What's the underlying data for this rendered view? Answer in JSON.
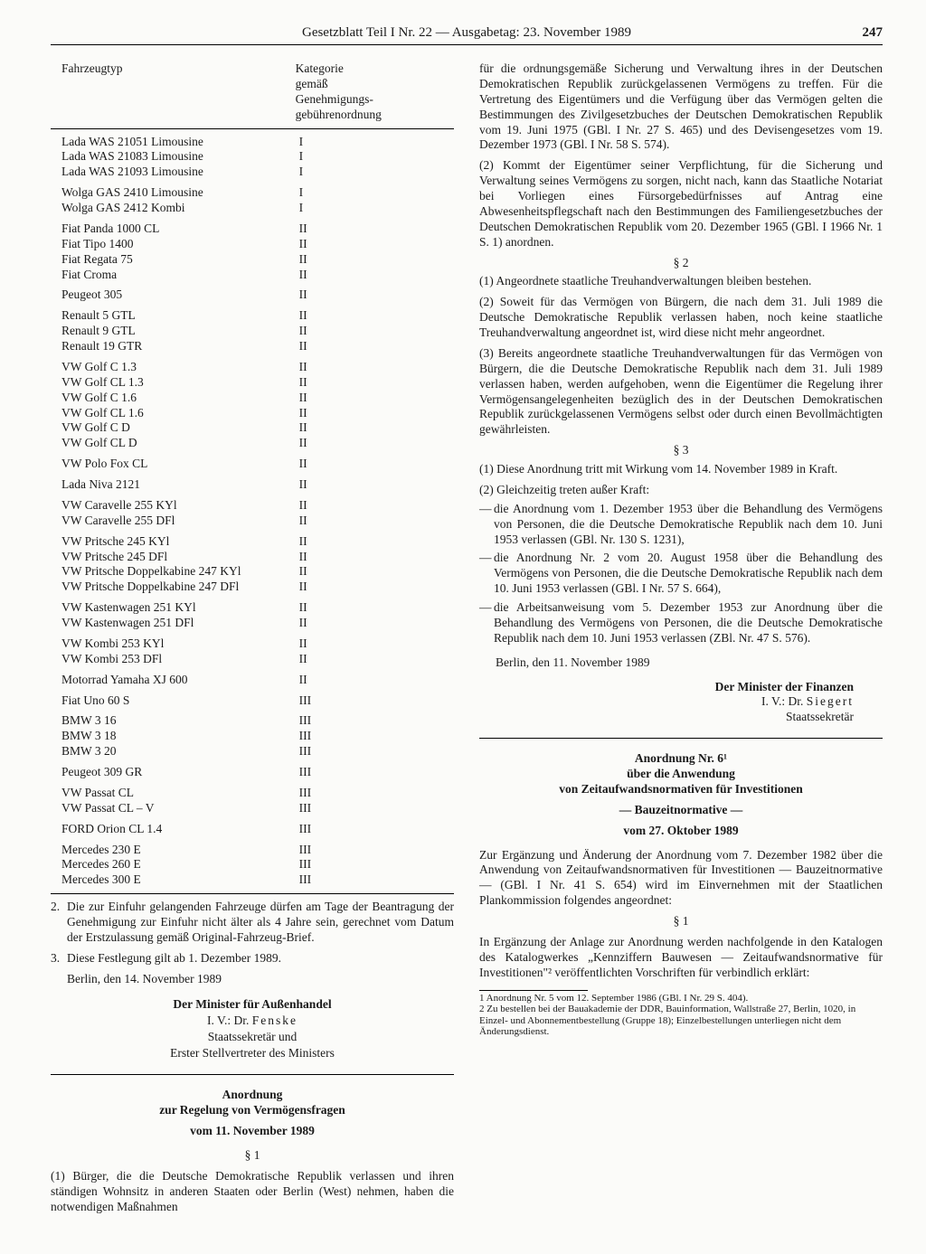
{
  "header": {
    "title": "Gesetzblatt Teil I Nr. 22 — Ausgabetag: 23. November 1989",
    "page": "247"
  },
  "table": {
    "head_col1": "Fahrzeugtyp",
    "head_col2": "Kategorie\ngemäß\nGenehmigungs-\ngebührenordnung",
    "groups": [
      [
        [
          "Lada WAS 21051 Limousine",
          "I"
        ],
        [
          "Lada WAS 21083 Limousine",
          "I"
        ],
        [
          "Lada WAS 21093 Limousine",
          "I"
        ]
      ],
      [
        [
          "Wolga GAS 2410 Limousine",
          "I"
        ],
        [
          "Wolga GAS 2412 Kombi",
          "I"
        ]
      ],
      [
        [
          "Fiat Panda 1000 CL",
          "II"
        ],
        [
          "Fiat Tipo 1400",
          "II"
        ],
        [
          "Fiat Regata 75",
          "II"
        ],
        [
          "Fiat Croma",
          "II"
        ]
      ],
      [
        [
          "Peugeot 305",
          "II"
        ]
      ],
      [
        [
          "Renault 5 GTL",
          "II"
        ],
        [
          "Renault 9 GTL",
          "II"
        ],
        [
          "Renault 19 GTR",
          "II"
        ]
      ],
      [
        [
          "VW Golf C 1.3",
          "II"
        ],
        [
          "VW Golf CL 1.3",
          "II"
        ],
        [
          "VW Golf C 1.6",
          "II"
        ],
        [
          "VW Golf CL 1.6",
          "II"
        ],
        [
          "VW Golf C D",
          "II"
        ],
        [
          "VW Golf CL D",
          "II"
        ]
      ],
      [
        [
          "VW Polo Fox CL",
          "II"
        ]
      ],
      [
        [
          "Lada Niva 2121",
          "II"
        ]
      ],
      [
        [
          "VW Caravelle 255 KYl",
          "II"
        ],
        [
          "VW Caravelle 255 DFl",
          "II"
        ]
      ],
      [
        [
          "VW Pritsche 245 KYl",
          "II"
        ],
        [
          "VW Pritsche 245 DFl",
          "II"
        ],
        [
          "VW Pritsche Doppelkabine 247 KYl",
          "II"
        ],
        [
          "VW Pritsche Doppelkabine 247 DFl",
          "II"
        ]
      ],
      [
        [
          "VW Kastenwagen 251 KYl",
          "II"
        ],
        [
          "VW Kastenwagen 251 DFl",
          "II"
        ]
      ],
      [
        [
          "VW Kombi 253 KYl",
          "II"
        ],
        [
          "VW Kombi 253 DFl",
          "II"
        ]
      ],
      [
        [
          "Motorrad Yamaha XJ 600",
          "II"
        ]
      ],
      [
        [
          "Fiat Uno 60 S",
          "III"
        ]
      ],
      [
        [
          "BMW 3 16",
          "III"
        ],
        [
          "BMW 3 18",
          "III"
        ],
        [
          "BMW 3 20",
          "III"
        ]
      ],
      [
        [
          "Peugeot 309 GR",
          "III"
        ]
      ],
      [
        [
          "VW Passat CL",
          "III"
        ],
        [
          "VW Passat CL – V",
          "III"
        ]
      ],
      [
        [
          "FORD Orion CL 1.4",
          "III"
        ]
      ],
      [
        [
          "Mercedes 230 E",
          "III"
        ],
        [
          "Mercedes 260 E",
          "III"
        ],
        [
          "Mercedes 300 E",
          "III"
        ]
      ]
    ]
  },
  "left": {
    "item2": "Die zur Einfuhr gelangenden Fahrzeuge dürfen am Tage der Beantragung der Genehmigung zur Einfuhr nicht älter als 4 Jahre sein, gerechnet vom Datum der Erstzulassung gemäß Original-Fahrzeug-Brief.",
    "item3": "Diese Festlegung gilt ab 1. Dezember 1989.",
    "date": "Berlin, den 14. November 1989",
    "sig1": "Der Minister für Außenhandel",
    "sig2_a": "I. V.: Dr. ",
    "sig2_b": "Fenske",
    "sig3": "Staatssekretär und",
    "sig4": "Erster Stellvertreter des Ministers",
    "ord_title1": "Anordnung",
    "ord_title2": "zur Regelung von Vermögensfragen",
    "ord_date": "vom 11. November 1989",
    "s1": "§ 1",
    "p1": "(1) Bürger, die die Deutsche Demokratische Republik verlassen und ihren ständigen Wohnsitz in anderen Staaten oder Berlin (West) nehmen, haben die notwendigen Maßnahmen"
  },
  "right": {
    "p_cont": "für die ordnungsgemäße Sicherung und Verwaltung ihres in der Deutschen Demokratischen Republik zurückgelassenen Vermögens zu treffen. Für die Vertretung des Eigentümers und die Verfügung über das Vermögen gelten die Bestimmungen des Zivilgesetzbuches der Deutschen Demokratischen Republik vom 19. Juni 1975 (GBl. I Nr. 27 S. 465) und des Devisengesetzes vom 19. Dezember 1973 (GBl. I Nr. 58 S. 574).",
    "p2": "(2) Kommt der Eigentümer seiner Verpflichtung, für die Sicherung und Verwaltung seines Vermögens zu sorgen, nicht nach, kann das Staatliche Notariat bei Vorliegen eines Fürsorgebedürfnisses auf Antrag eine Abwesenheitspflegschaft nach den Bestimmungen des Familiengesetzbuches der Deutschen Demokratischen Republik vom 20. Dezember 1965 (GBl. I 1966 Nr. 1 S. 1) anordnen.",
    "s2": "§ 2",
    "s2p1": "(1) Angeordnete staatliche Treuhandverwaltungen bleiben bestehen.",
    "s2p2": "(2) Soweit für das Vermögen von Bürgern, die nach dem 31. Juli 1989 die Deutsche Demokratische Republik verlassen haben, noch keine staatliche Treuhandverwaltung angeordnet ist, wird diese nicht mehr angeordnet.",
    "s2p3": "(3) Bereits angeordnete staatliche Treuhandverwaltungen für das Vermögen von Bürgern, die die Deutsche Demokratische Republik nach dem 31. Juli 1989 verlassen haben, werden aufgehoben, wenn die Eigentümer die Regelung ihrer Vermögensangelegenheiten bezüglich des in der Deutschen Demokratischen Republik zurückgelassenen Vermögens selbst oder durch einen Bevollmächtigten gewährleisten.",
    "s3": "§ 3",
    "s3p1": "(1) Diese Anordnung tritt mit Wirkung vom 14. November 1989 in Kraft.",
    "s3p2": "(2) Gleichzeitig treten außer Kraft:",
    "d1": "die Anordnung vom 1. Dezember 1953 über die Behandlung des Vermögens von Personen, die die Deutsche Demokratische Republik nach dem 10. Juni 1953 verlassen (GBl. Nr. 130 S. 1231),",
    "d2": "die Anordnung Nr. 2 vom 20. August 1958 über die Behandlung des Vermögens von Personen, die die Deutsche Demokratische Republik nach dem 10. Juni 1953 verlassen (GBl. I Nr. 57 S. 664),",
    "d3": "die Arbeitsanweisung vom 5. Dezember 1953 zur Anordnung über die Behandlung des Vermögens von Personen, die die Deutsche Demokratische Republik nach dem 10. Juni 1953 verlassen (ZBl. Nr. 47 S. 576).",
    "date2": "Berlin, den 11. November 1989",
    "sig_r1": "Der Minister der Finanzen",
    "sig_r2a": "I. V.: Dr. ",
    "sig_r2b": "Siegert",
    "sig_r3": "Staatssekretär",
    "ord6_t1": "Anordnung Nr. 6¹",
    "ord6_t2": "über die Anwendung",
    "ord6_t3": "von Zeitaufwandsnormativen für Investitionen",
    "ord6_t4": "— Bauzeitnormative —",
    "ord6_date": "vom 27. Oktober 1989",
    "ord6_p": "Zur Ergänzung und Änderung der Anordnung vom 7. Dezember 1982 über die Anwendung von Zeitaufwandsnormativen für Investitionen — Bauzeitnormative — (GBl. I Nr. 41 S. 654) wird im Einvernehmen mit der Staatlichen Plankommission folgendes angeordnet:",
    "ord6_s1": "§ 1",
    "ord6_s1p": "In Ergänzung der Anlage zur Anordnung werden nachfolgende in den Katalogen des Katalogwerkes „Kennziffern Bauwesen — Zeitaufwandsnormative für Investitionen\"² veröffentlichten Vorschriften für verbindlich erklärt:",
    "fn1": "1 Anordnung Nr. 5 vom 12. September 1986 (GBl. I Nr. 29 S. 404).",
    "fn2": "2 Zu bestellen bei der Bauakademie der DDR, Bauinformation, Wallstraße 27, Berlin, 1020, in Einzel- und Abonnementbestellung (Gruppe 18); Einzelbestellungen unterliegen nicht dem Änderungsdienst."
  }
}
